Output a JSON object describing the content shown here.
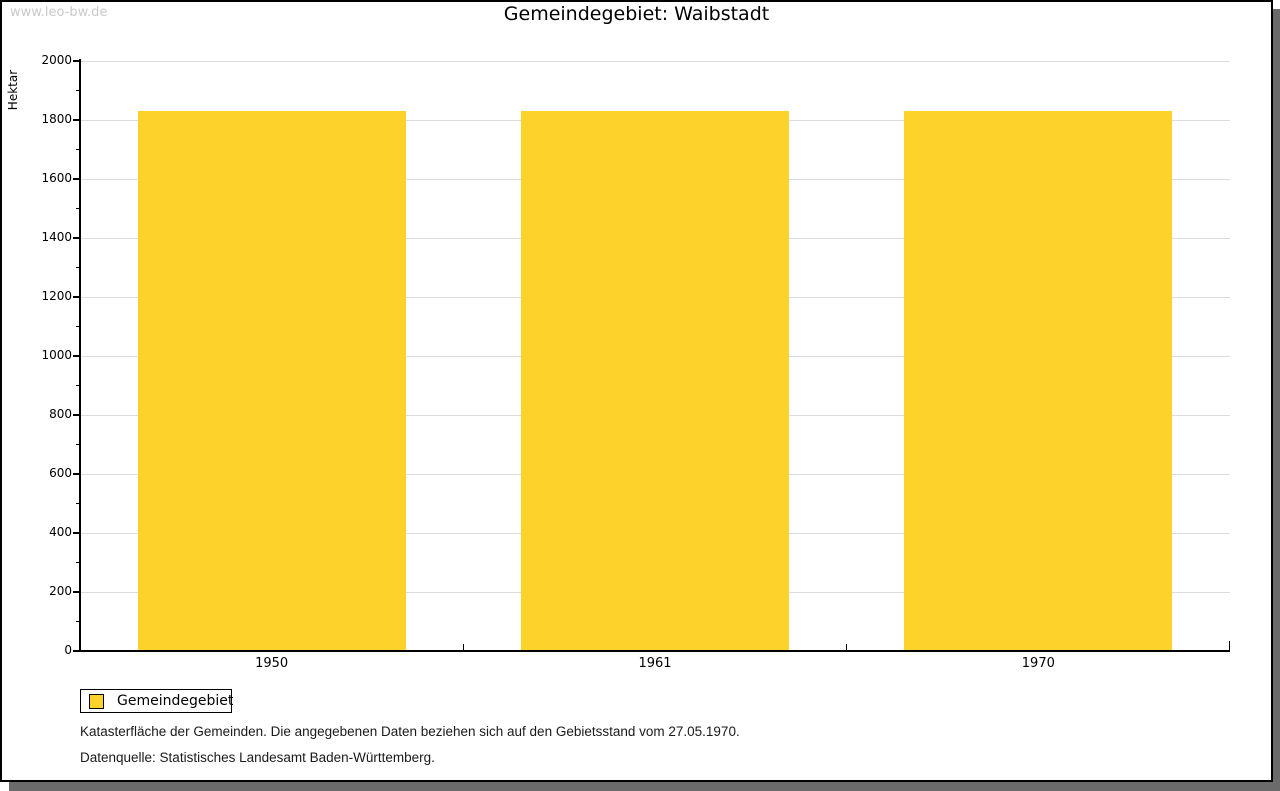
{
  "watermark": "www.leo-bw.de",
  "title": "Gemeindegebiet: Waibstadt",
  "chart_data": {
    "type": "bar",
    "title": "Gemeindegebiet: Waibstadt",
    "ylabel": "Hektar",
    "xlabel": "",
    "categories": [
      "1950",
      "1961",
      "1970"
    ],
    "series": [
      {
        "name": "Gemeindegebiet",
        "color": "#fdd32b",
        "values": [
          1830,
          1830,
          1830
        ]
      }
    ],
    "ylim": [
      0,
      2000
    ],
    "yticks": [
      0,
      200,
      400,
      600,
      800,
      1000,
      1200,
      1400,
      1600,
      1800,
      2000
    ],
    "y_minor_step": 100,
    "grid": true,
    "legend_position": "bottom-left"
  },
  "legend": {
    "label": "Gemeindegebiet",
    "swatch_color": "#fdd32b"
  },
  "footnotes": [
    "Katasterfläche der Gemeinden. Die angegebenen Daten beziehen sich auf den Gebietsstand vom 27.05.1970.",
    "Datenquelle: Statistisches Landesamt Baden-Württemberg."
  ],
  "colors": {
    "bar": "#fdd32b",
    "grid": "#dcdcdc",
    "axis": "#000000",
    "watermark": "#c9c9c9",
    "frame_shadow": "#6b6b6b"
  }
}
